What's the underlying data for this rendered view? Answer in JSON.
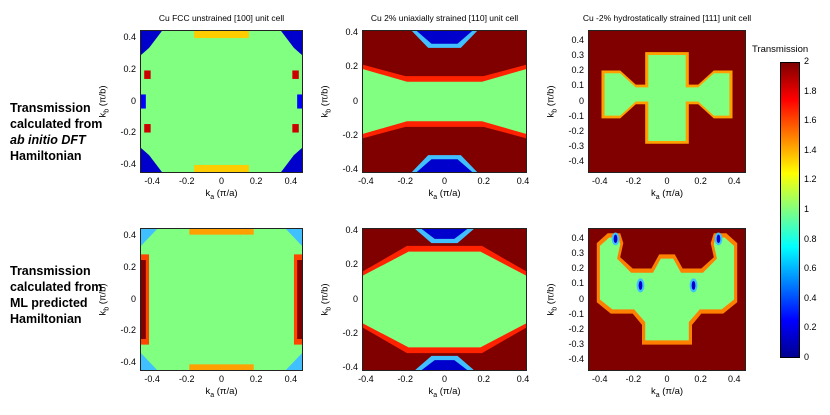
{
  "figure": {
    "row_labels": [
      [
        "Transmission",
        "calculated from",
        "ab initio DFT",
        "Hamiltonian"
      ],
      [
        "Transmission",
        "calculated from",
        "ML predicted",
        "Hamiltonian"
      ]
    ]
  },
  "chart_data": {
    "type": "heatmap",
    "colorbar": {
      "title": "Transmission",
      "range": [
        0,
        2
      ],
      "ticks": [
        "0",
        "0.2",
        "0.4",
        "0.6",
        "0.8",
        "1",
        "1.2",
        "1.4",
        "1.6",
        "1.8",
        "2"
      ],
      "colormap": "jet"
    },
    "colors": {
      "low": "#00008f",
      "one": "#80ff80",
      "high": "#800000"
    },
    "panels": [
      {
        "id": "p1",
        "title": "Cu FCC unstrained [100] unit cell",
        "row": 1,
        "col": 1,
        "xlabel_main": "k",
        "xlabel_sub": "a",
        "xlabel_unit": " (π/a)",
        "ylabel_main": "k",
        "ylabel_sub": "b",
        "ylabel_unit": " (π/b)",
        "xticks": [
          "-0.4",
          "-0.2",
          "0",
          "0.2",
          "0.4"
        ],
        "yticks": [
          "0.4",
          "0.2",
          "0",
          "-0.2",
          "-0.4"
        ],
        "xlim": [
          -0.47,
          0.47
        ],
        "ylim": [
          -0.45,
          0.45
        ],
        "regions": [
          {
            "label": "Transmission ≈ 1 (central)",
            "value": 1.0
          },
          {
            "label": "corners",
            "value": 0.0
          }
        ]
      },
      {
        "id": "p2",
        "title": "Cu 2% uniaxially strained [110] unit cell",
        "row": 1,
        "col": 2,
        "xlabel_main": "k",
        "xlabel_sub": "a",
        "xlabel_unit": " (π/a)",
        "ylabel_main": "k",
        "ylabel_sub": "b",
        "ylabel_unit": " (π/b)",
        "xticks": [
          "-0.4",
          "-0.2",
          "0",
          "0.2",
          "0.4"
        ],
        "yticks": [
          "0.4",
          "0.2",
          "0",
          "-0.2",
          "-0.4"
        ],
        "xlim": [
          -0.42,
          0.42
        ],
        "ylim": [
          -0.42,
          0.42
        ],
        "regions": [
          {
            "label": "central band",
            "value": 1.0
          },
          {
            "label": "top/bottom",
            "value": 2.0
          },
          {
            "label": "pockets",
            "value": 0.0
          }
        ]
      },
      {
        "id": "p3",
        "title": "Cu -2% hydrostatically strained [111] unit cell",
        "row": 1,
        "col": 3,
        "xlabel_main": "k",
        "xlabel_sub": "a",
        "xlabel_unit": " (π/a)",
        "ylabel_main": "k",
        "ylabel_sub": "b",
        "ylabel_unit": " (π/b)",
        "xticks": [
          "-0.4",
          "-0.2",
          "0",
          "0.2",
          "0.4"
        ],
        "yticks": [
          "0.4",
          "0.3",
          "0.2",
          "0.1",
          "0",
          "-0.1",
          "-0.2",
          "-0.3",
          "-0.4"
        ],
        "xlim": [
          -0.47,
          0.47
        ],
        "ylim": [
          -0.47,
          0.47
        ],
        "regions": [
          {
            "label": "central cross",
            "value": 1.0
          },
          {
            "label": "background",
            "value": 2.0
          }
        ]
      },
      {
        "id": "p4",
        "title": "",
        "row": 2,
        "col": 1,
        "xlabel_main": "k",
        "xlabel_sub": "a",
        "xlabel_unit": " (π/a)",
        "ylabel_main": "k",
        "ylabel_sub": "b",
        "ylabel_unit": " (π/b)",
        "xticks": [
          "-0.4",
          "-0.2",
          "0",
          "0.2",
          "0.4"
        ],
        "yticks": [
          "0.4",
          "0.2",
          "0",
          "-0.2",
          "-0.4"
        ],
        "xlim": [
          -0.47,
          0.47
        ],
        "ylim": [
          -0.45,
          0.45
        ],
        "regions": [
          {
            "label": "central",
            "value": 1.0
          },
          {
            "label": "sides",
            "value": 2.0
          }
        ]
      },
      {
        "id": "p5",
        "title": "",
        "row": 2,
        "col": 2,
        "xlabel_main": "k",
        "xlabel_sub": "a",
        "xlabel_unit": " (π/a)",
        "ylabel_main": "k",
        "ylabel_sub": "b",
        "ylabel_unit": " (π/b)",
        "xticks": [
          "-0.4",
          "-0.2",
          "0",
          "0.2",
          "0.4"
        ],
        "yticks": [
          "0.4",
          "0.2",
          "0",
          "-0.2",
          "-0.4"
        ],
        "xlim": [
          -0.42,
          0.42
        ],
        "ylim": [
          -0.42,
          0.42
        ],
        "regions": [
          {
            "label": "central band",
            "value": 1.0
          },
          {
            "label": "top/bottom",
            "value": 2.0
          },
          {
            "label": "pockets",
            "value": 0.0
          }
        ]
      },
      {
        "id": "p6",
        "title": "",
        "row": 2,
        "col": 3,
        "xlabel_main": "k",
        "xlabel_sub": "a",
        "xlabel_unit": " (π/a)",
        "ylabel_main": "k",
        "ylabel_sub": "b",
        "ylabel_unit": " (π/b)",
        "xticks": [
          "-0.4",
          "-0.2",
          "0",
          "0.2",
          "0.4"
        ],
        "yticks": [
          "0.4",
          "0.3",
          "0.2",
          "0.1",
          "0",
          "-0.1",
          "-0.2",
          "-0.3",
          "-0.4"
        ],
        "xlim": [
          -0.47,
          0.47
        ],
        "ylim": [
          -0.47,
          0.47
        ],
        "regions": [
          {
            "label": "central",
            "value": 1.0
          },
          {
            "label": "background",
            "value": 2.0
          },
          {
            "label": "pockets",
            "value": 0.0
          }
        ]
      }
    ]
  }
}
